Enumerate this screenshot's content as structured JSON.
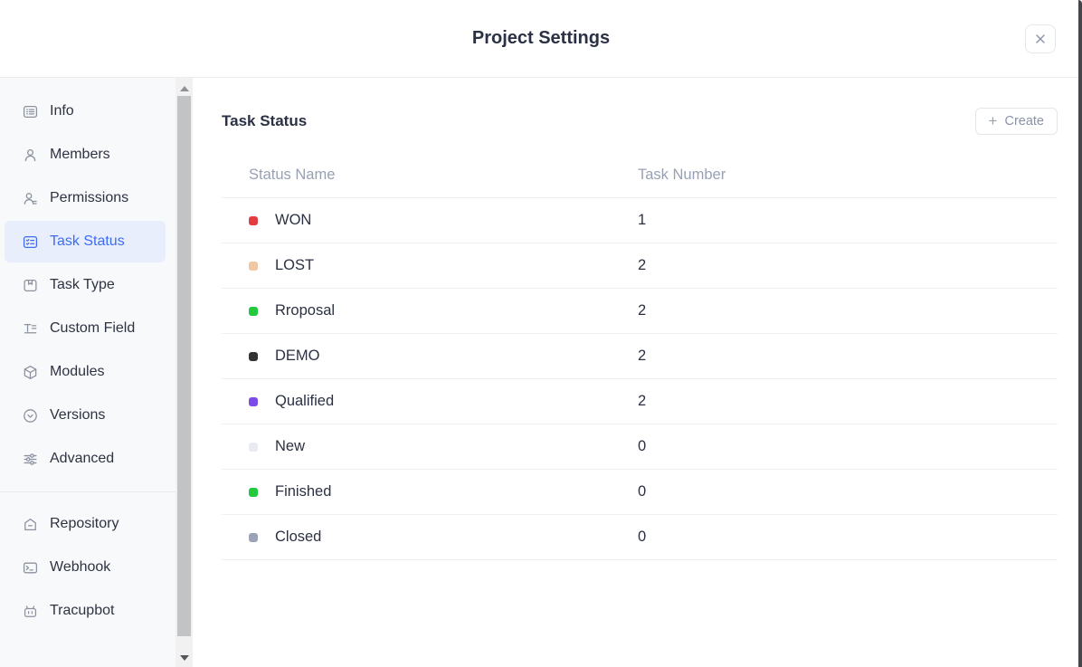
{
  "window": {
    "title": "Project Settings",
    "close_icon": "x-icon"
  },
  "sidebar": {
    "items": [
      {
        "label": "Info",
        "icon": "info-icon",
        "active": false
      },
      {
        "label": "Members",
        "icon": "members-icon",
        "active": false
      },
      {
        "label": "Permissions",
        "icon": "permissions-icon",
        "active": false
      },
      {
        "label": "Task Status",
        "icon": "task-status-icon",
        "active": true
      },
      {
        "label": "Task Type",
        "icon": "task-type-icon",
        "active": false
      },
      {
        "label": "Custom Field",
        "icon": "custom-field-icon",
        "active": false
      },
      {
        "label": "Modules",
        "icon": "modules-icon",
        "active": false
      },
      {
        "label": "Versions",
        "icon": "versions-icon",
        "active": false
      },
      {
        "label": "Advanced",
        "icon": "advanced-icon",
        "active": false
      }
    ],
    "integration_items": [
      {
        "label": "Repository",
        "icon": "repository-icon",
        "active": false
      },
      {
        "label": "Webhook",
        "icon": "webhook-icon",
        "active": false
      },
      {
        "label": "Tracupbot",
        "icon": "tracupbot-icon",
        "active": false
      }
    ]
  },
  "main": {
    "section_title": "Task Status",
    "create_button_label": "Create",
    "create_button_plus": "+",
    "table": {
      "columns": [
        "Status Name",
        "Task Number"
      ],
      "rows": [
        {
          "name": "WON",
          "task_number": "1",
          "dot_color": "#e23b41"
        },
        {
          "name": "LOST",
          "task_number": "2",
          "dot_color": "#efc7a3"
        },
        {
          "name": "Rroposal",
          "task_number": "2",
          "dot_color": "#21c93c"
        },
        {
          "name": "DEMO",
          "task_number": "2",
          "dot_color": "#333333"
        },
        {
          "name": "Qualified",
          "task_number": "2",
          "dot_color": "#7a4be8"
        },
        {
          "name": "New",
          "task_number": "0",
          "dot_color": "#e9ebf0"
        },
        {
          "name": "Finished",
          "task_number": "0",
          "dot_color": "#21c93c"
        },
        {
          "name": "Closed",
          "task_number": "0",
          "dot_color": "#9aa3b8"
        }
      ]
    }
  },
  "colors": {
    "accent_blue": "#3e6bf2",
    "active_item_bg": "#e8eefc",
    "sidebar_bg": "#f8f9fb"
  }
}
